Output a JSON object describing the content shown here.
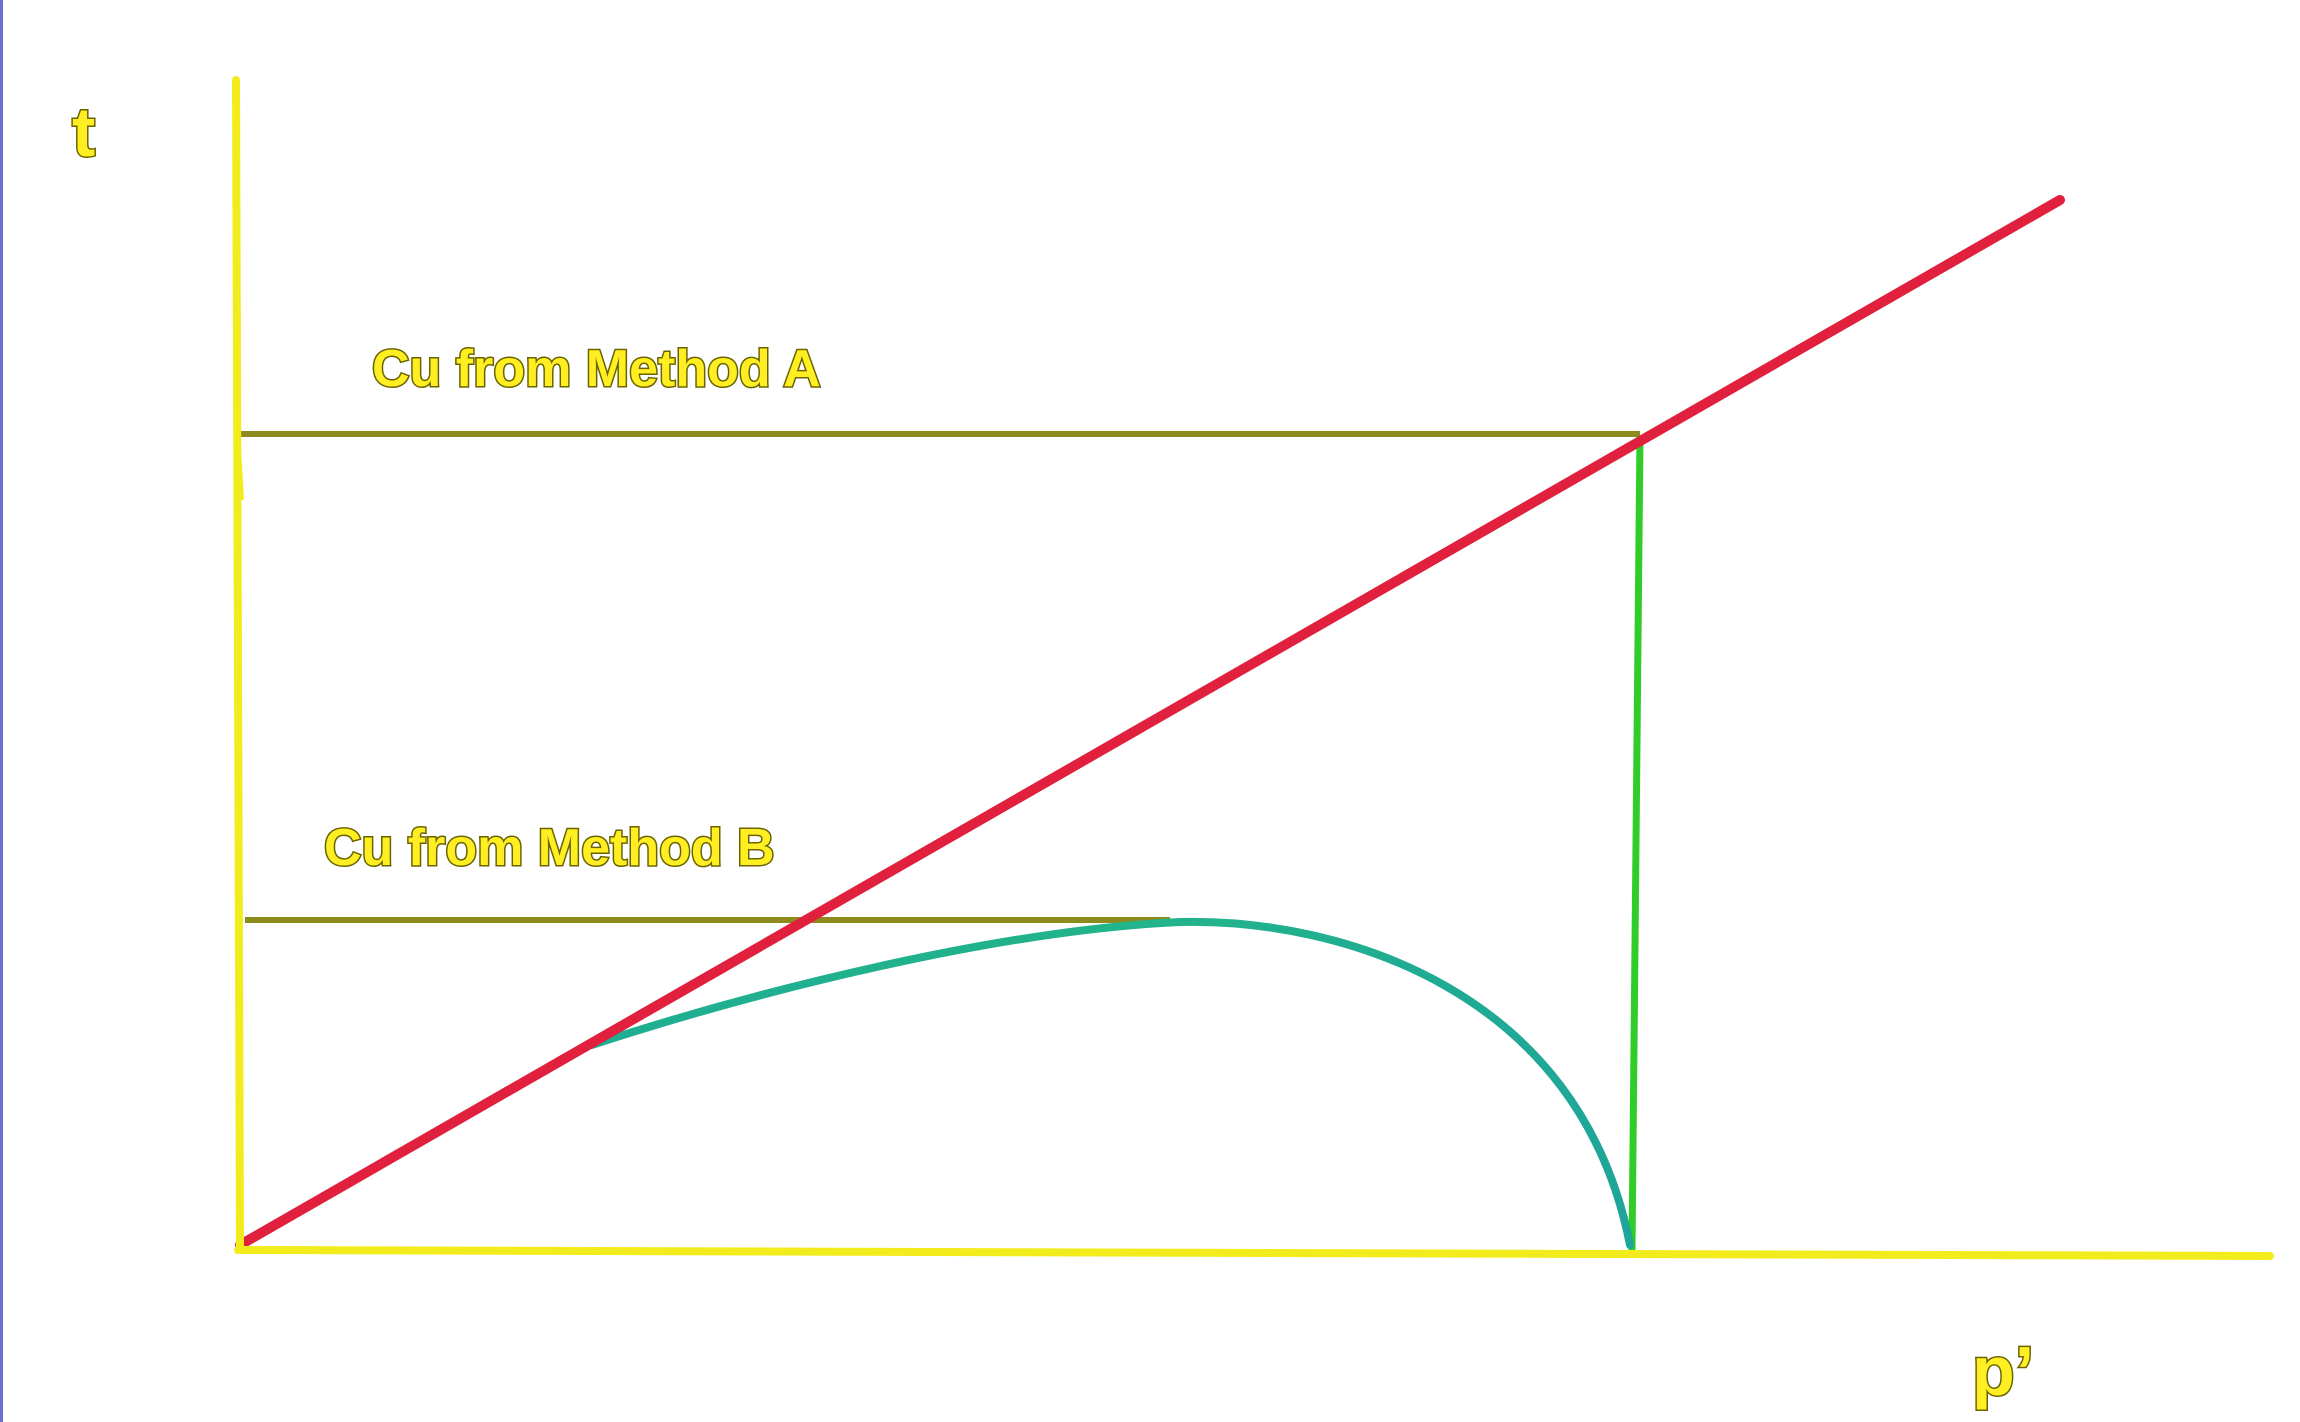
{
  "axes": {
    "y_label": "t",
    "x_label": "p’"
  },
  "labels": {
    "method_a": "Cu from Method A",
    "method_b": "Cu from Method B"
  },
  "colors": {
    "background": "#ffffff",
    "axis": "#f2ec1c",
    "reference_line": "#8d8a1e",
    "failure_line": "#e0203c",
    "stress_path": "#1fae92",
    "vertical_path": "#2fcc2a",
    "left_edge": "#4848c8"
  }
}
